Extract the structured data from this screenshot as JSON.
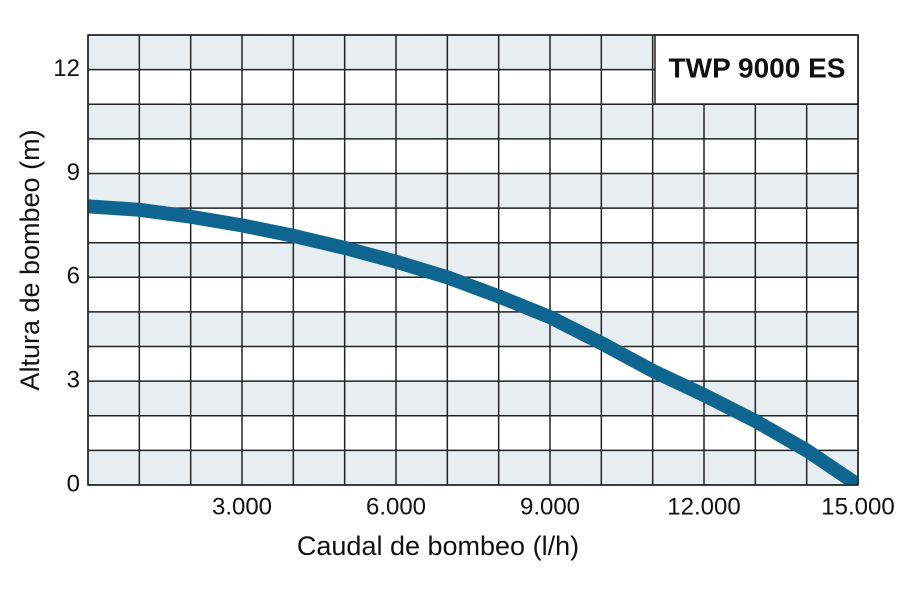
{
  "chart_data": {
    "type": "line",
    "title": "TWP 9000 ES",
    "x_label": "Caudal de bombeo (l/h)",
    "y_label": "Altura de bombeo (m)",
    "xlim": [
      0,
      15000
    ],
    "ylim": [
      0,
      13
    ],
    "xticks": [
      {
        "value": 3000,
        "label": "3.000"
      },
      {
        "value": 6000,
        "label": "6.000"
      },
      {
        "value": 9000,
        "label": "9.000"
      },
      {
        "value": 12000,
        "label": "12.000"
      },
      {
        "value": 15000,
        "label": "15.000"
      }
    ],
    "yticks": [
      0,
      3,
      6,
      9,
      12
    ],
    "grid_x": [
      0,
      1000,
      2000,
      3000,
      4000,
      5000,
      6000,
      7000,
      8000,
      9000,
      10000,
      11000,
      12000,
      13000,
      14000,
      15000
    ],
    "grid_y": [
      0,
      1,
      2,
      3,
      4,
      5,
      6,
      7,
      8,
      9,
      10,
      11,
      12,
      13
    ],
    "band_color": "#e6eef1",
    "x": [
      0,
      1000,
      2000,
      3000,
      4000,
      5000,
      6000,
      7000,
      8000,
      9000,
      10000,
      11000,
      12000,
      13000,
      14000,
      14500,
      15000
    ],
    "series": [
      {
        "name": "TWP 9000 ES",
        "color": "#0e6690",
        "values": [
          8.05,
          7.95,
          7.75,
          7.5,
          7.2,
          6.85,
          6.45,
          6.0,
          5.45,
          4.85,
          4.1,
          3.3,
          2.6,
          1.85,
          1.0,
          0.5,
          0
        ]
      }
    ]
  }
}
